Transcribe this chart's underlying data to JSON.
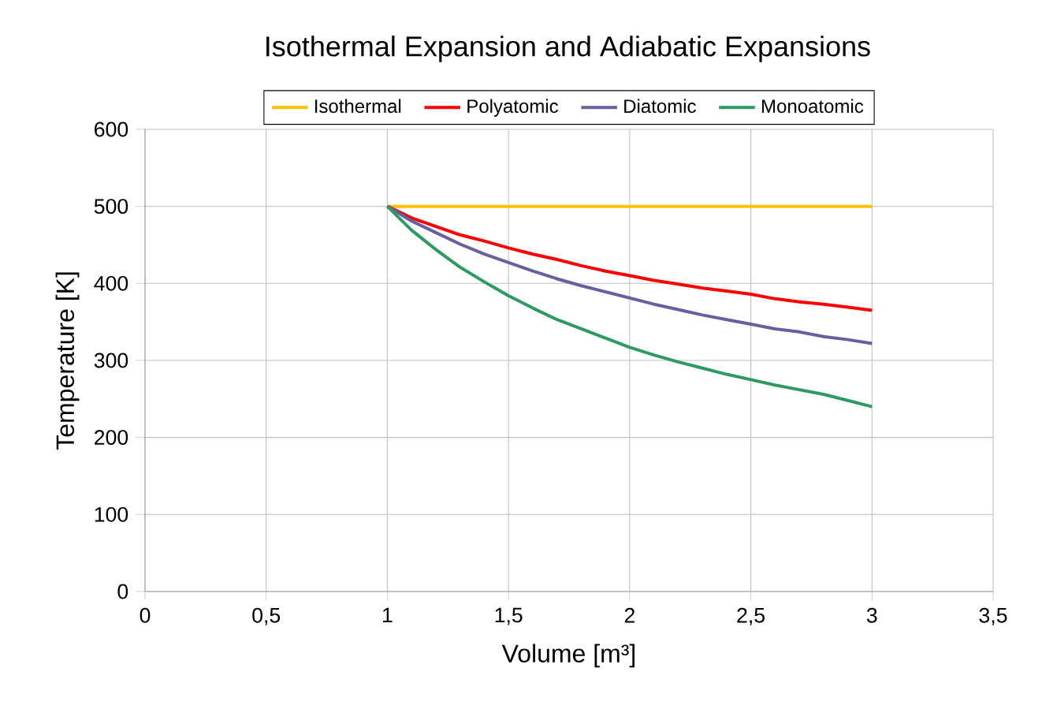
{
  "chart_data": {
    "type": "line",
    "title": "Isothermal Expansion and Adiabatic Expansions",
    "xlabel": "Volume [m³]",
    "ylabel": "Temperature [K]",
    "x": [
      1.0,
      1.1,
      1.2,
      1.3,
      1.4,
      1.5,
      1.6,
      1.7,
      1.8,
      1.9,
      2.0,
      2.1,
      2.2,
      2.3,
      2.4,
      2.5,
      2.6,
      2.7,
      2.8,
      2.9,
      3.0
    ],
    "series": [
      {
        "name": "Isothermal",
        "color": "#ffc000",
        "values": [
          500,
          500,
          500,
          500,
          500,
          500,
          500,
          500,
          500,
          500,
          500,
          500,
          500,
          500,
          500,
          500,
          500,
          500,
          500,
          500,
          500
        ]
      },
      {
        "name": "Polyatomic",
        "color": "#ff0000",
        "values": [
          500,
          485,
          474,
          463,
          455,
          446,
          438,
          431,
          423,
          416,
          410,
          404,
          399,
          394,
          390,
          386,
          380,
          376,
          373,
          369,
          365
        ]
      },
      {
        "name": "Diatomic",
        "color": "#6a5f9e",
        "values": [
          500,
          481,
          466,
          451,
          438,
          427,
          416,
          406,
          397,
          389,
          381,
          373,
          366,
          359,
          353,
          347,
          341,
          337,
          331,
          327,
          322
        ]
      },
      {
        "name": "Monoatomic",
        "color": "#2e9a62",
        "values": [
          500,
          469,
          444,
          421,
          402,
          384,
          368,
          353,
          341,
          329,
          317,
          307,
          298,
          290,
          282,
          275,
          268,
          262,
          256,
          248,
          240
        ]
      }
    ],
    "xlim": [
      0,
      3.5
    ],
    "ylim": [
      0,
      600
    ],
    "xticks": [
      0,
      {
        "value": 0.5,
        "label": "0,5"
      },
      1,
      {
        "value": 1.5,
        "label": "1,5"
      },
      2,
      {
        "value": 2.5,
        "label": "2,5"
      },
      3,
      {
        "value": 3.5,
        "label": "3,5"
      }
    ],
    "yticks": [
      0,
      100,
      200,
      300,
      400,
      500,
      600
    ],
    "grid": true,
    "legend": "top"
  }
}
